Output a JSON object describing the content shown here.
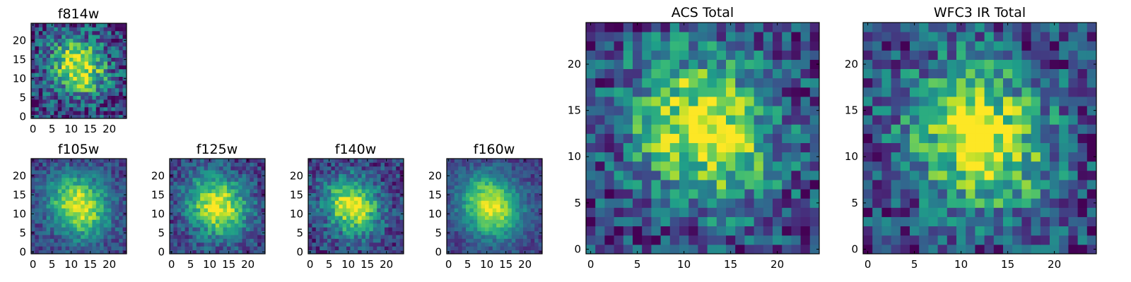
{
  "chart_data": [
    {
      "type": "heatmap",
      "title": "f814w",
      "x_ticks": [
        "0",
        "5",
        "10",
        "15",
        "20"
      ],
      "y_ticks": [
        "0",
        "5",
        "10",
        "15",
        "20"
      ],
      "grid_size": 25,
      "xlim": [
        -0.5,
        24.5
      ],
      "ylim": [
        -0.5,
        24.5
      ],
      "peak": [
        12,
        13
      ],
      "spread": 5.5,
      "noise": 0.3,
      "colormap": "viridis"
    },
    {
      "type": "heatmap",
      "title": "f105w",
      "x_ticks": [
        "0",
        "5",
        "10",
        "15",
        "20"
      ],
      "y_ticks": [
        "0",
        "5",
        "10",
        "15",
        "20"
      ],
      "grid_size": 25,
      "xlim": [
        -0.5,
        24.5
      ],
      "ylim": [
        -0.5,
        24.5
      ],
      "peak": [
        12,
        12
      ],
      "spread": 6.0,
      "noise": 0.15,
      "colormap": "viridis"
    },
    {
      "type": "heatmap",
      "title": "f125w",
      "x_ticks": [
        "0",
        "5",
        "10",
        "15",
        "20"
      ],
      "y_ticks": [
        "0",
        "5",
        "10",
        "15",
        "20"
      ],
      "grid_size": 25,
      "xlim": [
        -0.5,
        24.5
      ],
      "ylim": [
        -0.5,
        24.5
      ],
      "peak": [
        12,
        12
      ],
      "spread": 6.0,
      "noise": 0.18,
      "colormap": "viridis"
    },
    {
      "type": "heatmap",
      "title": "f140w",
      "x_ticks": [
        "0",
        "5",
        "10",
        "15",
        "20"
      ],
      "y_ticks": [
        "0",
        "5",
        "10",
        "15",
        "20"
      ],
      "grid_size": 25,
      "xlim": [
        -0.5,
        24.5
      ],
      "ylim": [
        -0.5,
        24.5
      ],
      "peak": [
        11,
        12
      ],
      "spread": 5.5,
      "noise": 0.2,
      "colormap": "viridis"
    },
    {
      "type": "heatmap",
      "title": "f160w",
      "x_ticks": [
        "0",
        "5",
        "10",
        "15",
        "20"
      ],
      "y_ticks": [
        "0",
        "5",
        "10",
        "15",
        "20"
      ],
      "grid_size": 25,
      "xlim": [
        -0.5,
        24.5
      ],
      "ylim": [
        -0.5,
        24.5
      ],
      "peak": [
        11,
        12
      ],
      "spread": 6.0,
      "noise": 0.12,
      "colormap": "viridis"
    },
    {
      "type": "heatmap",
      "title": "ACS Total",
      "x_ticks": [
        "0",
        "5",
        "10",
        "15",
        "20"
      ],
      "y_ticks": [
        "0",
        "5",
        "10",
        "15",
        "20"
      ],
      "grid_size": 25,
      "xlim": [
        -0.5,
        24.5
      ],
      "ylim": [
        -0.5,
        24.5
      ],
      "peak": [
        12,
        13
      ],
      "spread": 6.0,
      "noise": 0.28,
      "colormap": "viridis"
    },
    {
      "type": "heatmap",
      "title": "WFC3 IR Total",
      "x_ticks": [
        "0",
        "5",
        "10",
        "15",
        "20"
      ],
      "y_ticks": [
        "0",
        "5",
        "10",
        "15",
        "20"
      ],
      "grid_size": 25,
      "xlim": [
        -0.5,
        24.5
      ],
      "ylim": [
        -0.5,
        24.5
      ],
      "peak": [
        12,
        12
      ],
      "spread": 6.0,
      "noise": 0.28,
      "colormap": "viridis"
    }
  ]
}
